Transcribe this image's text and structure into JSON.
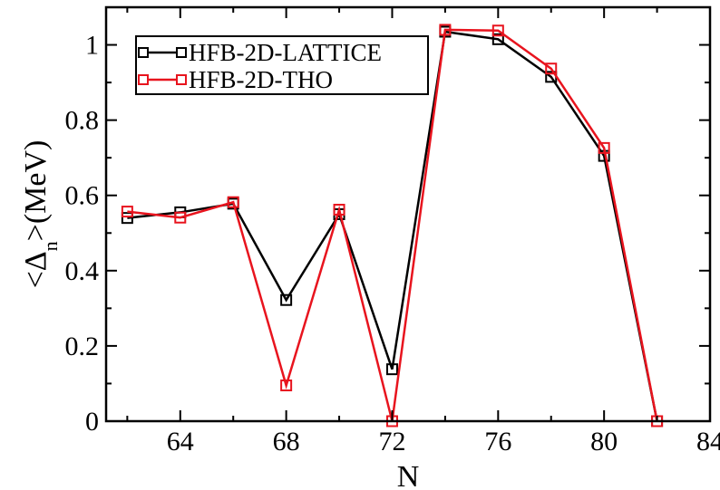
{
  "chart_data": {
    "type": "line",
    "title": "",
    "xlabel": "N",
    "ylabel_main": "<Δ",
    "ylabel_sub": "n",
    "ylabel_rest": ">(MeV)",
    "xlim": [
      61.2,
      84
    ],
    "ylim": [
      0,
      1.1
    ],
    "xticks": [
      64,
      68,
      72,
      76,
      80,
      84
    ],
    "yticks": [
      0,
      0.2,
      0.4,
      0.6,
      0.8,
      1
    ],
    "ytick_labels": [
      "0",
      "0.2",
      "0.4",
      "0.6",
      "0.8",
      "1"
    ],
    "legend_position": "top-left",
    "grid": false,
    "series": [
      {
        "name": "HFB-2D-LATTICE",
        "color": "#000000",
        "x": [
          62,
          64,
          66,
          68,
          70,
          72,
          74,
          76,
          78,
          80,
          82
        ],
        "y": [
          0.54,
          0.555,
          0.578,
          0.322,
          0.55,
          0.138,
          1.035,
          1.015,
          0.915,
          0.705,
          0.0
        ]
      },
      {
        "name": "HFB-2D-THO",
        "color": "#e8141e",
        "x": [
          62,
          64,
          66,
          68,
          70,
          72,
          74,
          76,
          78,
          80,
          82
        ],
        "y": [
          0.557,
          0.541,
          0.582,
          0.095,
          0.562,
          0.0,
          1.04,
          1.038,
          0.937,
          0.726,
          0.0
        ]
      }
    ]
  }
}
